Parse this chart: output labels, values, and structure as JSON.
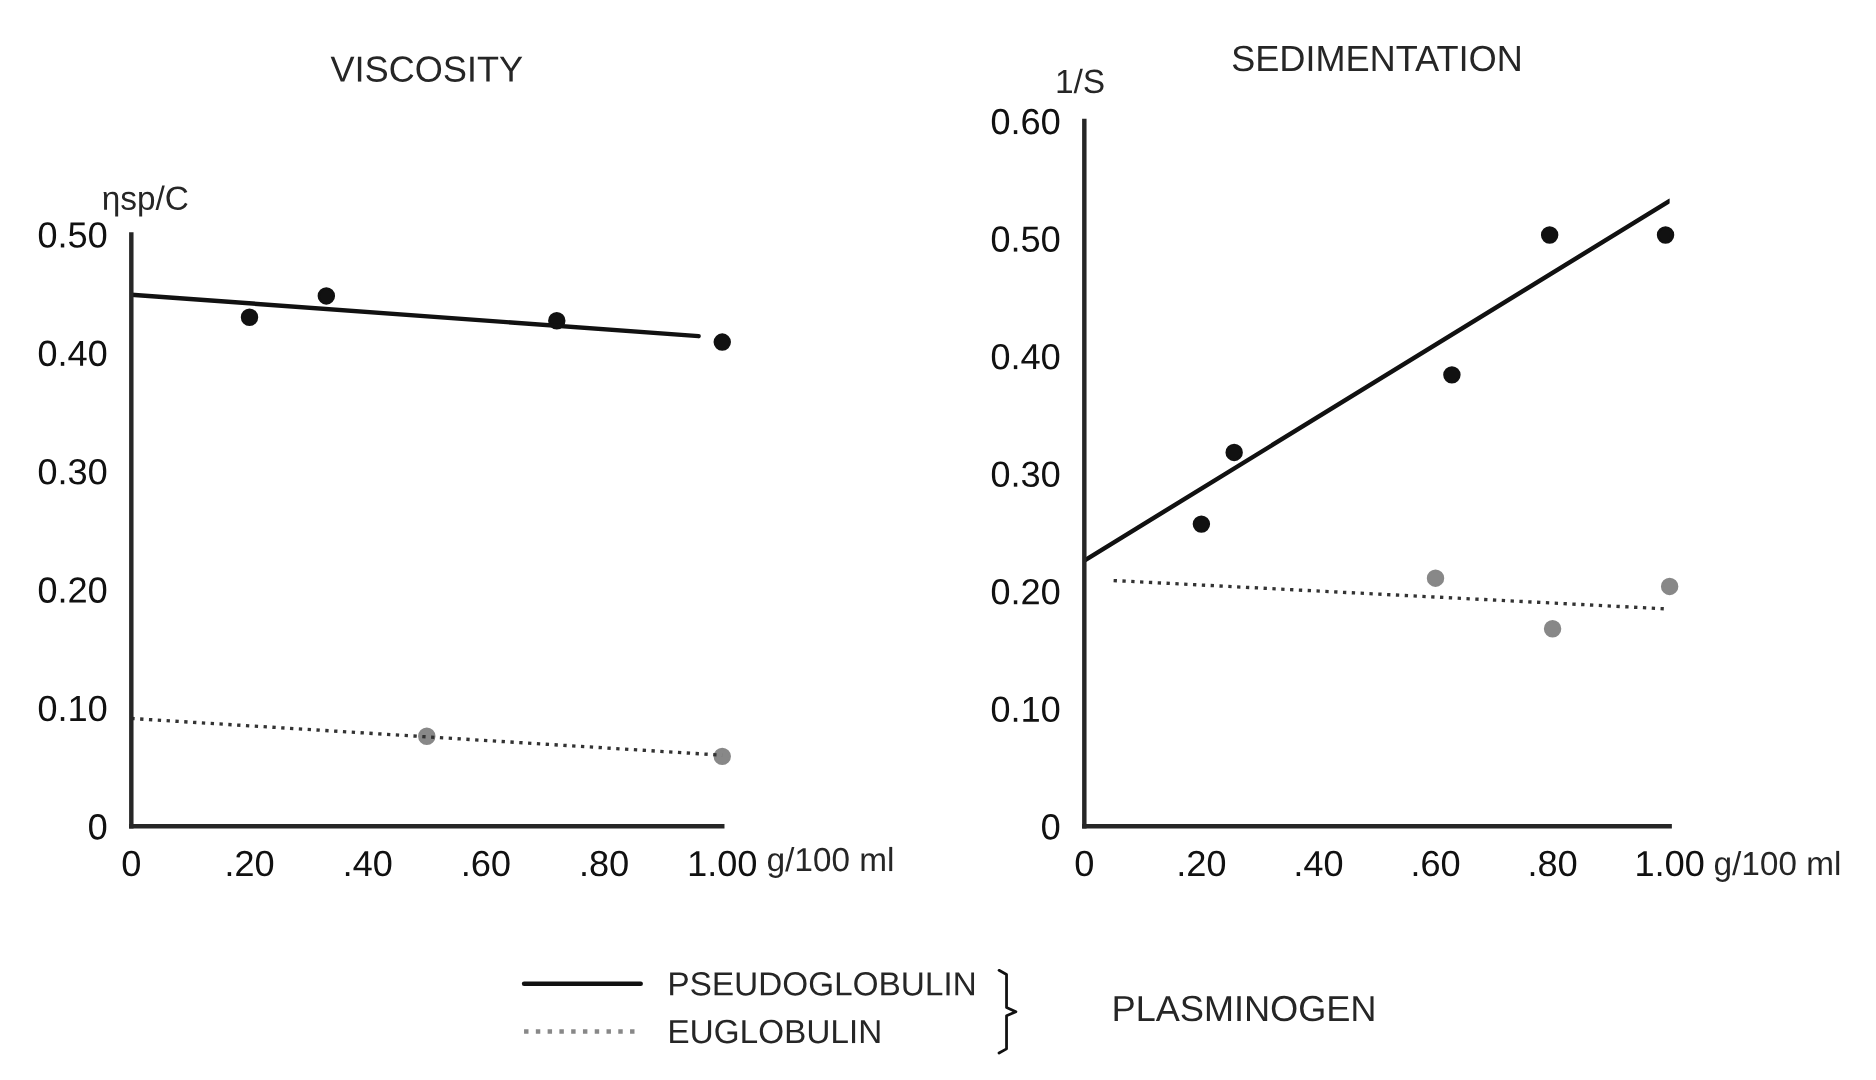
{
  "chart_data": [
    {
      "type": "scatter",
      "title": "VISCOSITY",
      "xlabel": "g/100 ml",
      "ylabel": "ηsp/C",
      "legend_title": "PLASMINOGEN",
      "legend": "bottom",
      "xlim": [
        0,
        1.0
      ],
      "ylim": [
        0,
        0.5
      ],
      "xticks": [
        0,
        {
          "value": 0.2,
          "label": ".20"
        },
        {
          "value": 0.4,
          "label": ".40"
        },
        {
          "value": 0.6,
          "label": ".60"
        },
        {
          "value": 0.8,
          "label": ".80"
        },
        {
          "value": 1.0,
          "label": "1.00"
        }
      ],
      "yticks": [
        0,
        {
          "value": 0.1,
          "label": "0.10"
        },
        {
          "value": 0.2,
          "label": "0.20"
        },
        {
          "value": 0.3,
          "label": "0.30"
        },
        {
          "value": 0.4,
          "label": "0.40"
        },
        {
          "value": 0.5,
          "label": "0.50"
        }
      ],
      "series": [
        {
          "name": "PSEUDOGLOBULIN",
          "color": "#111111",
          "marker": "circle",
          "line_style": "solid",
          "x": [
            0.2,
            0.33,
            0.72,
            1.0
          ],
          "values": [
            0.43,
            0.448,
            0.427,
            0.409
          ]
        },
        {
          "type": "line",
          "color": "#111111",
          "marker": "none",
          "line_style": "solid",
          "x": [
            0,
            0.96
          ],
          "values": [
            0.449,
            0.414
          ]
        },
        {
          "name": "EUGLOBULIN",
          "color": "#888888",
          "marker": "circle",
          "line_style": "dotted",
          "x": [
            0.5,
            1.0
          ],
          "values": [
            0.076,
            0.059
          ]
        },
        {
          "type": "line",
          "color": "#333333",
          "marker": "none",
          "line_style": "dotted",
          "x": [
            0,
            1.0
          ],
          "values": [
            0.091,
            0.06
          ]
        }
      ]
    },
    {
      "type": "scatter",
      "title": "SEDIMENTATION",
      "xlabel": "g/100 ml",
      "ylabel": "1/S",
      "xlim": [
        0,
        1.0
      ],
      "ylim": [
        0,
        0.6
      ],
      "xticks": [
        0,
        {
          "value": 0.2,
          "label": ".20"
        },
        {
          "value": 0.4,
          "label": ".40"
        },
        {
          "value": 0.6,
          "label": ".60"
        },
        {
          "value": 0.8,
          "label": ".80"
        },
        {
          "value": 1.0,
          "label": "1.00"
        }
      ],
      "yticks": [
        0,
        {
          "value": 0.1,
          "label": "0.10"
        },
        {
          "value": 0.2,
          "label": "0.20"
        },
        {
          "value": 0.3,
          "label": "0.30"
        },
        {
          "value": 0.4,
          "label": "0.40"
        },
        {
          "value": 0.5,
          "label": "0.50"
        },
        {
          "value": 0.6,
          "label": "0.60"
        }
      ],
      "series": [
        {
          "color": "#111111",
          "marker": "circle",
          "x": [
            0.2,
            0.256,
            0.628,
            0.795,
            0.993
          ],
          "values": [
            0.257,
            0.318,
            0.384,
            0.503,
            0.503
          ]
        },
        {
          "type": "line",
          "color": "#111111",
          "marker": "none",
          "line_style": "solid",
          "x": [
            0,
            1.0
          ],
          "values": [
            0.226,
            0.532
          ]
        },
        {
          "color": "#888888",
          "marker": "circle",
          "x": [
            0.6,
            0.8,
            1.0
          ],
          "values": [
            0.211,
            0.168,
            0.204
          ]
        },
        {
          "type": "line",
          "color": "#333333",
          "marker": "none",
          "line_style": "dotted",
          "x": [
            0.05,
            0.99
          ],
          "values": [
            0.209,
            0.185
          ]
        }
      ]
    }
  ]
}
